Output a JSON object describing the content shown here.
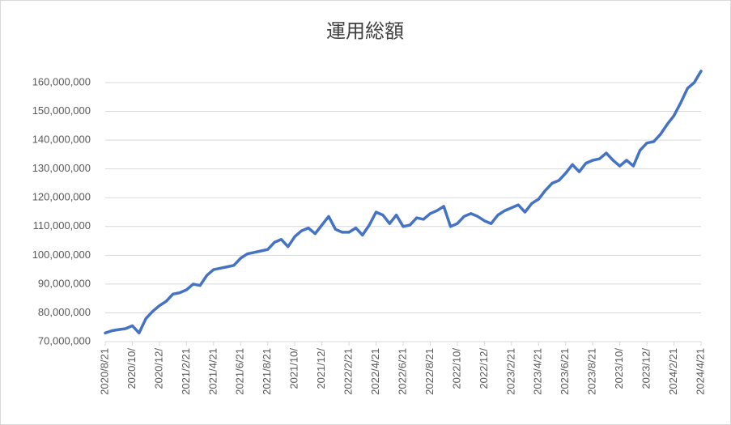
{
  "chart_data": {
    "type": "line",
    "title": "運用総額",
    "categories": [
      "2020/8/21",
      null,
      null,
      null,
      "2020/10/",
      null,
      null,
      null,
      "2020/12/",
      null,
      null,
      null,
      "2021/2/21",
      null,
      null,
      null,
      "2021/4/21",
      null,
      null,
      null,
      "2021/6/21",
      null,
      null,
      null,
      "2021/8/21",
      null,
      null,
      null,
      "2021/10/",
      null,
      null,
      null,
      "2021/12/",
      null,
      null,
      null,
      "2022/2/21",
      null,
      null,
      null,
      "2022/4/21",
      null,
      null,
      null,
      "2022/6/21",
      null,
      null,
      null,
      "2022/8/21",
      null,
      null,
      null,
      "2022/10/",
      null,
      null,
      null,
      "2022/12/",
      null,
      null,
      null,
      "2023/2/21",
      null,
      null,
      null,
      "2023/4/21",
      null,
      null,
      null,
      "2023/6/21",
      null,
      null,
      null,
      "2023/8/21",
      null,
      null,
      null,
      "2023/10/",
      null,
      null,
      null,
      "2023/12/",
      null,
      null,
      null,
      "2024/2/21",
      null,
      null,
      null,
      "2024/4/21"
    ],
    "values": [
      73000000,
      73800000,
      74200000,
      74500000,
      75500000,
      73000000,
      78000000,
      80500000,
      82500000,
      84000000,
      86500000,
      87000000,
      88000000,
      90000000,
      89500000,
      93000000,
      95000000,
      95500000,
      96000000,
      96500000,
      99000000,
      100500000,
      101000000,
      101500000,
      102000000,
      104500000,
      105500000,
      103000000,
      106500000,
      108500000,
      109500000,
      107500000,
      110500000,
      113500000,
      109000000,
      108000000,
      108000000,
      109500000,
      107000000,
      110500000,
      115000000,
      114000000,
      111000000,
      114000000,
      110000000,
      110500000,
      113000000,
      112500000,
      114500000,
      115500000,
      117000000,
      110000000,
      111000000,
      113500000,
      114500000,
      113500000,
      112000000,
      111000000,
      114000000,
      115500000,
      116500000,
      117500000,
      115000000,
      118000000,
      119500000,
      122500000,
      125000000,
      126000000,
      128500000,
      131500000,
      129000000,
      132000000,
      133000000,
      133500000,
      135500000,
      133000000,
      131000000,
      133000000,
      131000000,
      136500000,
      139000000,
      139500000,
      142000000,
      145500000,
      148500000,
      153000000,
      158000000,
      160000000,
      164000000
    ],
    "color": "#4472c4",
    "ylim": [
      70000000,
      160000000
    ],
    "yticks": [
      {
        "value": 70000000,
        "label": "70,000,000"
      },
      {
        "value": 80000000,
        "label": "80,000,000"
      },
      {
        "value": 90000000,
        "label": "90,000,000"
      },
      {
        "value": 100000000,
        "label": "100,000,000"
      },
      {
        "value": 110000000,
        "label": "110,000,000"
      },
      {
        "value": 120000000,
        "label": "120,000,000"
      },
      {
        "value": 130000000,
        "label": "130,000,000"
      },
      {
        "value": 140000000,
        "label": "140,000,000"
      },
      {
        "value": 150000000,
        "label": "150,000,000"
      },
      {
        "value": 160000000,
        "label": "160,000,000"
      }
    ],
    "grid": true
  }
}
